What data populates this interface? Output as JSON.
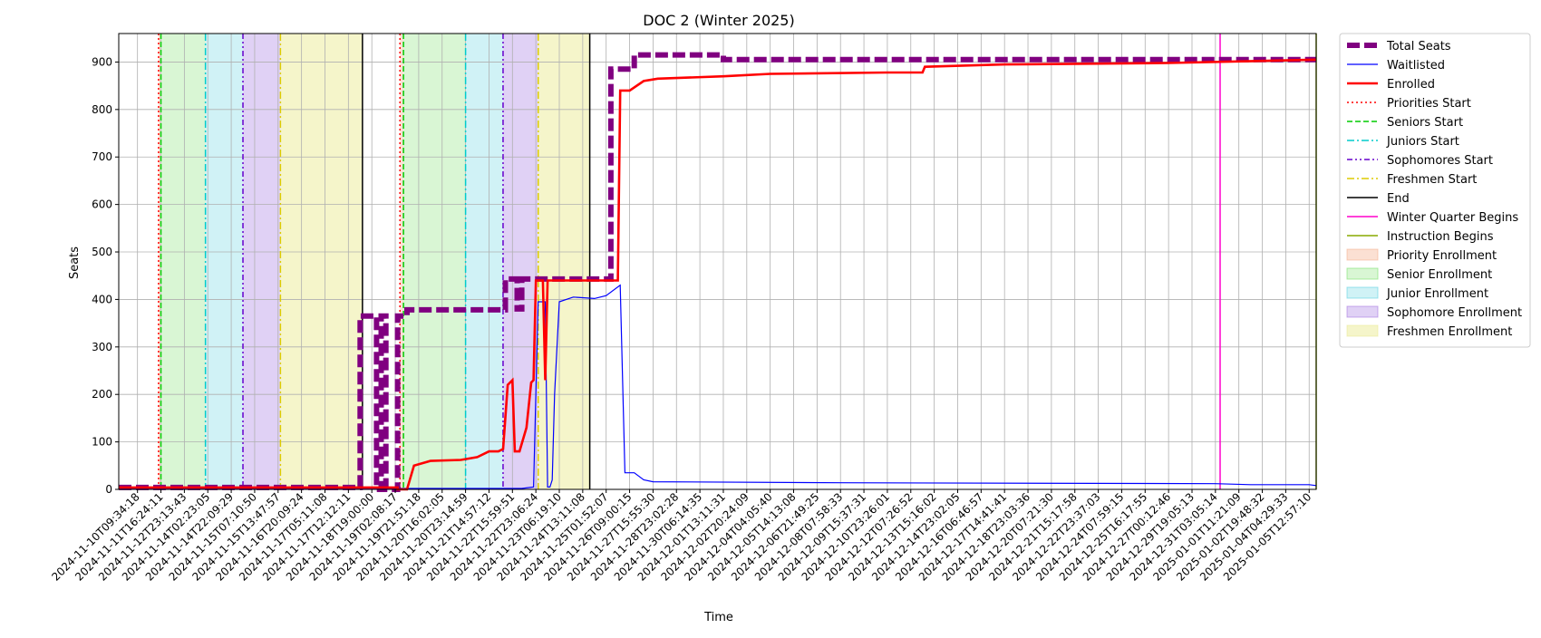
{
  "chart_data": {
    "type": "line",
    "title": "DOC 2 (Winter 2025)",
    "xlabel": "Time",
    "ylabel": "Seats",
    "ylim": [
      0,
      960
    ],
    "yticks": [
      0,
      100,
      200,
      300,
      400,
      500,
      600,
      700,
      800,
      900
    ],
    "x_tick_labels": [
      "2024-11-10T09:34:18",
      "2024-11-11T16:24:11",
      "2024-11-12T23:13:43",
      "2024-11-14T02:23:05",
      "2024-11-14T22:09:29",
      "2024-11-15T07:10:50",
      "2024-11-15T13:47:57",
      "2024-11-16T20:09:24",
      "2024-11-17T05:11:08",
      "2024-11-17T12:12:11",
      "2024-11-18T19:00:00",
      "2024-11-19T02:08:17",
      "2024-11-19T21:51:18",
      "2024-11-20T16:02:05",
      "2024-11-20T23:14:59",
      "2024-11-21T14:57:12",
      "2024-11-22T15:59:51",
      "2024-11-22T23:06:24",
      "2024-11-23T06:19:10",
      "2024-11-24T13:11:08",
      "2024-11-25T01:52:07",
      "2024-11-26T09:00:15",
      "2024-11-27T15:55:30",
      "2024-11-28T23:02:28",
      "2024-11-30T06:14:35",
      "2024-12-01T13:11:31",
      "2024-12-02T20:24:09",
      "2024-12-04T04:05:40",
      "2024-12-05T14:13:08",
      "2024-12-06T21:49:25",
      "2024-12-08T07:58:33",
      "2024-12-09T15:37:31",
      "2024-12-10T23:26:01",
      "2024-12-12T07:26:52",
      "2024-12-13T15:16:02",
      "2024-12-14T23:02:05",
      "2024-12-16T06:46:57",
      "2024-12-17T14:41:41",
      "2024-12-18T23:03:36",
      "2024-12-20T07:21:30",
      "2024-12-21T15:17:58",
      "2024-12-22T23:37:03",
      "2024-12-24T07:59:15",
      "2024-12-25T16:17:55",
      "2024-12-27T00:12:46",
      "2024-12-29T19:05:13",
      "2024-12-31T03:05:14",
      "2025-01-01T11:21:09",
      "2025-01-02T19:48:32",
      "2025-01-04T04:29:33",
      "2025-01-05T12:57:10"
    ],
    "x_range_ticks": [
      -0.8,
      50.3
    ],
    "series": [
      {
        "name": "Total Seats",
        "color": "#800080",
        "style": "dashed-thick",
        "points": [
          [
            -0.8,
            4
          ],
          [
            9.5,
            4
          ],
          [
            9.5,
            365
          ],
          [
            10.2,
            365
          ],
          [
            10.2,
            0
          ],
          [
            10.4,
            0
          ],
          [
            10.4,
            365
          ],
          [
            10.6,
            365
          ],
          [
            10.6,
            0
          ],
          [
            11.1,
            0
          ],
          [
            11.1,
            365
          ],
          [
            11.5,
            365
          ],
          [
            11.5,
            378
          ],
          [
            15.7,
            378
          ],
          [
            15.7,
            443
          ],
          [
            16.2,
            443
          ],
          [
            16.2,
            380
          ],
          [
            16.4,
            380
          ],
          [
            16.4,
            443
          ],
          [
            20.2,
            443
          ],
          [
            20.2,
            885
          ],
          [
            21.2,
            885
          ],
          [
            21.2,
            915
          ],
          [
            25.0,
            915
          ],
          [
            25.0,
            905
          ],
          [
            50.3,
            905
          ]
        ]
      },
      {
        "name": "Waitlisted",
        "color": "#0000ff",
        "style": "solid-thin",
        "points": [
          [
            -0.8,
            2
          ],
          [
            15.3,
            2
          ],
          [
            16.4,
            2
          ],
          [
            16.9,
            5
          ],
          [
            17.1,
            395
          ],
          [
            17.4,
            395
          ],
          [
            17.5,
            5
          ],
          [
            17.6,
            5
          ],
          [
            17.7,
            20
          ],
          [
            17.8,
            200
          ],
          [
            18.0,
            395
          ],
          [
            18.6,
            405
          ],
          [
            19.5,
            402
          ],
          [
            20.0,
            408
          ],
          [
            20.6,
            430
          ],
          [
            20.8,
            35
          ],
          [
            21.2,
            35
          ],
          [
            21.6,
            20
          ],
          [
            22.0,
            16
          ],
          [
            30.0,
            14
          ],
          [
            46.0,
            12
          ],
          [
            47.5,
            10
          ],
          [
            50.0,
            10
          ],
          [
            50.3,
            8
          ]
        ]
      },
      {
        "name": "Enrolled",
        "color": "#ff0000",
        "style": "solid-thick",
        "points": [
          [
            -0.8,
            4
          ],
          [
            11.1,
            4
          ],
          [
            11.1,
            0
          ],
          [
            11.5,
            0
          ],
          [
            11.8,
            50
          ],
          [
            12.5,
            60
          ],
          [
            13.8,
            62
          ],
          [
            14.5,
            68
          ],
          [
            15.0,
            80
          ],
          [
            15.4,
            80
          ],
          [
            15.6,
            85
          ],
          [
            15.8,
            220
          ],
          [
            16.0,
            230
          ],
          [
            16.1,
            80
          ],
          [
            16.3,
            80
          ],
          [
            16.6,
            130
          ],
          [
            16.8,
            225
          ],
          [
            16.9,
            230
          ],
          [
            17.0,
            440
          ],
          [
            17.3,
            440
          ],
          [
            17.4,
            230
          ],
          [
            17.5,
            440
          ],
          [
            20.5,
            440
          ],
          [
            20.6,
            840
          ],
          [
            21.0,
            840
          ],
          [
            21.6,
            860
          ],
          [
            22.2,
            865
          ],
          [
            25.0,
            870
          ],
          [
            27.0,
            875
          ],
          [
            32.0,
            878
          ],
          [
            33.5,
            878
          ],
          [
            33.6,
            890
          ],
          [
            37.0,
            895
          ],
          [
            44.0,
            898
          ],
          [
            50.3,
            905
          ]
        ]
      }
    ],
    "phase_markers": [
      {
        "name": "Priorities Start",
        "color": "#ff0000",
        "style": "dotted",
        "x": [
          0.9,
          11.2
        ]
      },
      {
        "name": "Seniors Start",
        "color": "#00cc00",
        "style": "dashed",
        "x": [
          1.0,
          11.35
        ]
      },
      {
        "name": "Juniors Start",
        "color": "#00cccc",
        "style": "dashdot",
        "x": [
          2.9,
          14.0
        ]
      },
      {
        "name": "Sophomores Start",
        "color": "#6600cc",
        "style": "dashdotdot",
        "x": [
          4.5,
          15.6
        ]
      },
      {
        "name": "Freshmen Start",
        "color": "#ddcc00",
        "style": "dashdot",
        "x": [
          6.1,
          17.1
        ]
      },
      {
        "name": "End",
        "color": "#000000",
        "style": "solid",
        "x": [
          9.6,
          19.3
        ]
      },
      {
        "name": "Winter Quarter Begins",
        "color": "#ff00cc",
        "style": "solid",
        "x": [
          46.2
        ]
      },
      {
        "name": "Instruction Begins",
        "color": "#88aa00",
        "style": "solid",
        "x": [
          50.3
        ]
      }
    ],
    "phase_bands": [
      {
        "name": "Priority Enrollment",
        "color": "#f4a582",
        "alpha": 0.35,
        "ranges": [
          [
            0.9,
            1.0
          ],
          [
            11.2,
            11.35
          ]
        ]
      },
      {
        "name": "Senior Enrollment",
        "color": "#66dd55",
        "alpha": 0.25,
        "ranges": [
          [
            1.0,
            2.9
          ],
          [
            11.35,
            14.0
          ]
        ]
      },
      {
        "name": "Junior Enrollment",
        "color": "#44ccdd",
        "alpha": 0.25,
        "ranges": [
          [
            2.9,
            4.5
          ],
          [
            14.0,
            15.6
          ]
        ]
      },
      {
        "name": "Sophomore Enrollment",
        "color": "#9966dd",
        "alpha": 0.3,
        "ranges": [
          [
            4.5,
            6.1
          ],
          [
            15.6,
            17.1
          ]
        ]
      },
      {
        "name": "Freshmen Enrollment",
        "color": "#e8e88a",
        "alpha": 0.45,
        "ranges": [
          [
            6.1,
            9.6
          ],
          [
            17.1,
            19.3
          ]
        ]
      }
    ],
    "grid": true,
    "legend_position": "outside-right"
  }
}
